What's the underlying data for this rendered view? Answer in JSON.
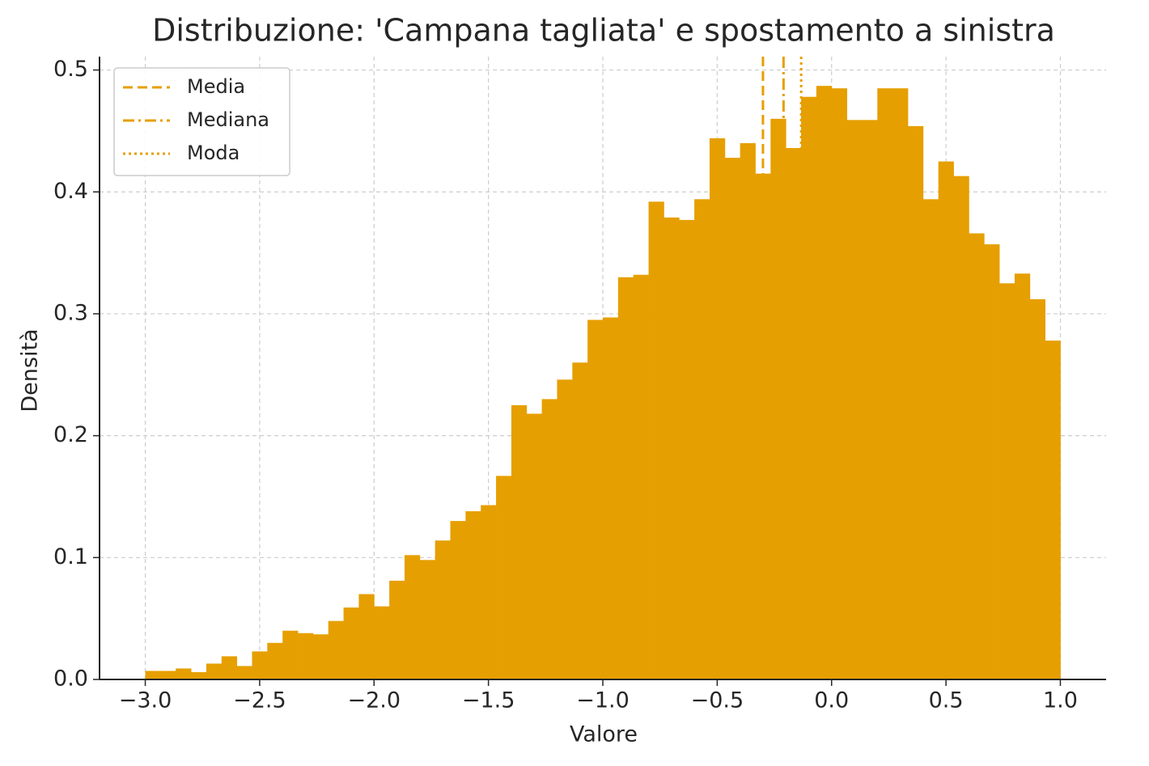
{
  "chart_data": {
    "type": "histogram",
    "title": "Distribuzione: 'Campana tagliata' e spostamento a sinistra",
    "x_label": "Valore",
    "y_label": "Densità",
    "color": "#e69f00",
    "grid": true,
    "legend": "upper left",
    "bins": [
      -3,
      -2.9333,
      -2.8667,
      -2.8,
      -2.7333,
      -2.6667,
      -2.6,
      -2.5333,
      -2.4667,
      -2.4,
      -2.3333,
      -2.2667,
      -2.2,
      -2.1333,
      -2.0667,
      -2,
      -1.9333,
      -1.8667,
      -1.8,
      -1.7333,
      -1.6667,
      -1.6,
      -1.5333,
      -1.4667,
      -1.4,
      -1.3333,
      -1.2667,
      -1.2,
      -1.1333,
      -1.0667,
      -1,
      -0.9333,
      -0.8667,
      -0.8,
      -0.7333,
      -0.6667,
      -0.6,
      -0.5333,
      -0.4667,
      -0.4,
      -0.3333,
      -0.2667,
      -0.2,
      -0.1333,
      -0.0667,
      0,
      0.0667,
      0.1333,
      0.2,
      0.2667,
      0.3333,
      0.4,
      0.4667,
      0.5333,
      0.6,
      0.6667,
      0.7333,
      0.8,
      0.8667,
      0.9333,
      1
    ],
    "values": [
      0.007,
      0.007,
      0.009,
      0.006,
      0.013,
      0.019,
      0.011,
      0.023,
      0.03,
      0.04,
      0.038,
      0.037,
      0.048,
      0.059,
      0.07,
      0.06,
      0.081,
      0.102,
      0.098,
      0.114,
      0.13,
      0.138,
      0.143,
      0.167,
      0.225,
      0.218,
      0.23,
      0.246,
      0.26,
      0.295,
      0.297,
      0.33,
      0.332,
      0.392,
      0.379,
      0.377,
      0.394,
      0.444,
      0.428,
      0.44,
      0.415,
      0.46,
      0.436,
      0.478,
      0.487,
      0.485,
      0.459,
      0.459,
      0.485,
      0.485,
      0.454,
      0.394,
      0.425,
      0.413,
      0.366,
      0.357,
      0.325,
      0.333,
      0.312,
      0.278
    ],
    "vlines": [
      {
        "name": "Media",
        "x": -0.3,
        "style": "dashed"
      },
      {
        "name": "Mediana",
        "x": -0.21,
        "style": "dashdot"
      },
      {
        "name": "Moda",
        "x": -0.133,
        "style": "dotted"
      }
    ],
    "xlim": [
      -3.2,
      1.2
    ],
    "ylim": [
      0,
      0.511
    ],
    "xticks": [
      {
        "value": -3,
        "label": "−3.0"
      },
      {
        "value": -2.5,
        "label": "−2.5"
      },
      {
        "value": -2,
        "label": "−2.0"
      },
      {
        "value": -1.5,
        "label": "−1.5"
      },
      {
        "value": -1,
        "label": "−1.0"
      },
      {
        "value": -0.5,
        "label": "−0.5"
      },
      {
        "value": 0,
        "label": "0.0"
      },
      {
        "value": 0.5,
        "label": "0.5"
      },
      {
        "value": 1,
        "label": "1.0"
      }
    ],
    "yticks": [
      {
        "value": 0,
        "label": "0.0"
      },
      0.1,
      0.2,
      0.3,
      0.4,
      0.5
    ]
  }
}
